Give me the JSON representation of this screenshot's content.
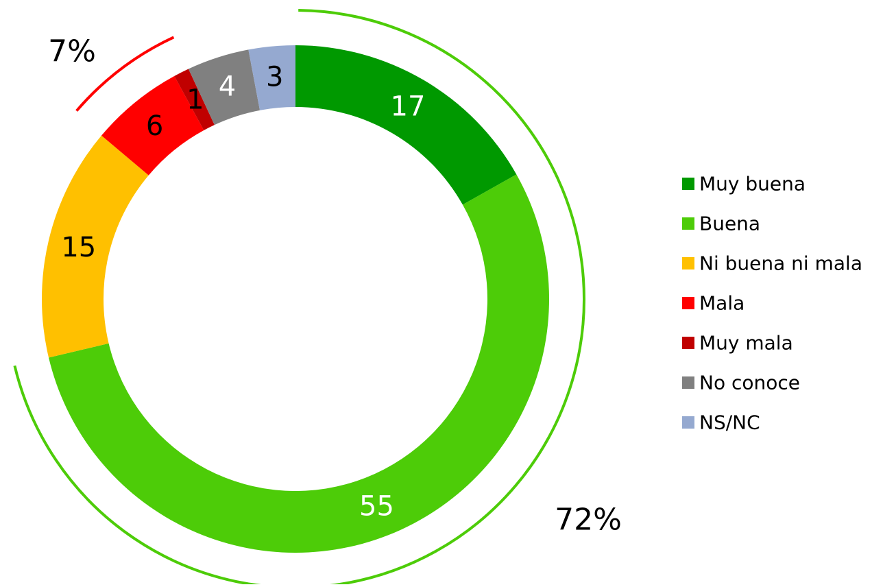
{
  "chart_data": {
    "type": "donut",
    "categories": [
      "Muy buena",
      "Buena",
      "Ni buena ni mala",
      "Mala",
      "Muy mala",
      "No conoce",
      "NS/NC"
    ],
    "values": [
      17,
      55,
      15,
      6,
      1,
      4,
      3
    ],
    "colors": [
      "#009900",
      "#4dcc08",
      "#ffc000",
      "#ff0000",
      "#c00000",
      "#808080",
      "#95a9d0"
    ],
    "label_colors": [
      "#ffffff",
      "#ffffff",
      "#000000",
      "#000000",
      "#000000",
      "#ffffff",
      "#000000"
    ],
    "legend": "right",
    "annotations": [
      {
        "text": "72%",
        "color": "#4dcc08"
      },
      {
        "text": "7%",
        "color": "#ff0000"
      }
    ]
  }
}
